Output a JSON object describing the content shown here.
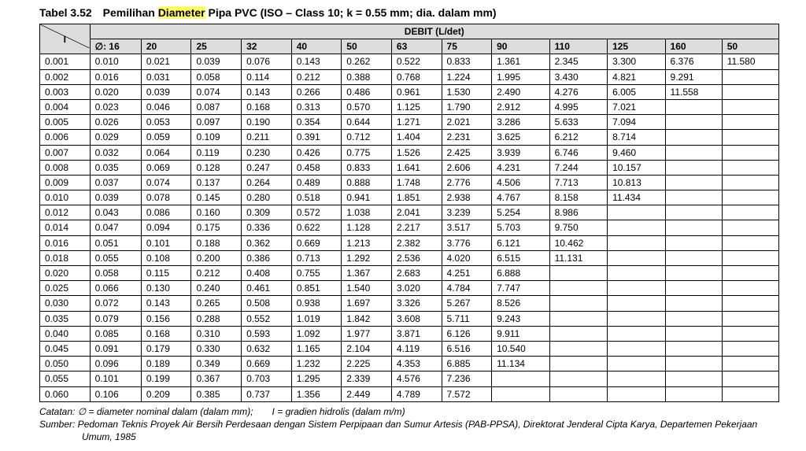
{
  "caption_prefix": "Tabel 3.52 Pemilihan ",
  "caption_highlight": "Diameter",
  "caption_suffix": " Pipa PVC (ISO – Class 10; k = 0.55 mm; dia. dalam mm)",
  "i_label": "I",
  "debit_header": "DEBIT (L/det)",
  "diameter_symbol": "∅: ",
  "diameters": [
    "16",
    "20",
    "25",
    "32",
    "40",
    "50",
    "63",
    "75",
    "90",
    "110",
    "125",
    "160",
    "50"
  ],
  "rows": [
    {
      "i": "0.001",
      "v": [
        "0.010",
        "0.021",
        "0.039",
        "0.076",
        "0.143",
        "0.262",
        "0.522",
        "0.833",
        "1.361",
        "2.345",
        "3.300",
        "6.376",
        "11.580"
      ]
    },
    {
      "i": "0.002",
      "v": [
        "0.016",
        "0.031",
        "0.058",
        "0.114",
        "0.212",
        "0.388",
        "0.768",
        "1.224",
        "1.995",
        "3.430",
        "4.821",
        "9.291",
        ""
      ]
    },
    {
      "i": "0.003",
      "v": [
        "0.020",
        "0.039",
        "0.074",
        "0.143",
        "0.266",
        "0.486",
        "0.961",
        "1.530",
        "2.490",
        "4.276",
        "6.005",
        "11.558",
        ""
      ]
    },
    {
      "i": "0.004",
      "v": [
        "0.023",
        "0.046",
        "0.087",
        "0.168",
        "0.313",
        "0.570",
        "1.125",
        "1.790",
        "2.912",
        "4.995",
        "7.021",
        "",
        ""
      ]
    },
    {
      "i": "0.005",
      "v": [
        "0.026",
        "0.053",
        "0.097",
        "0.190",
        "0.354",
        "0.644",
        "1.271",
        "2.021",
        "3.286",
        "5.633",
        "7.094",
        "",
        ""
      ]
    },
    {
      "i": "0.006",
      "v": [
        "0.029",
        "0.059",
        "0.109",
        "0.211",
        "0.391",
        "0.712",
        "1.404",
        "2.231",
        "3.625",
        "6.212",
        "8.714",
        "",
        ""
      ]
    },
    {
      "i": "0.007",
      "v": [
        "0.032",
        "0.064",
        "0.119",
        "0.230",
        "0.426",
        "0.775",
        "1.526",
        "2.425",
        "3.939",
        "6.746",
        "9.460",
        "",
        ""
      ]
    },
    {
      "i": "0.008",
      "v": [
        "0.035",
        "0.069",
        "0.128",
        "0.247",
        "0.458",
        "0.833",
        "1.641",
        "2.606",
        "4.231",
        "7.244",
        "10.157",
        "",
        ""
      ]
    },
    {
      "i": "0.009",
      "v": [
        "0.037",
        "0.074",
        "0.137",
        "0.264",
        "0.489",
        "0.888",
        "1.748",
        "2.776",
        "4.506",
        "7.713",
        "10.813",
        "",
        ""
      ]
    },
    {
      "i": "0.010",
      "v": [
        "0.039",
        "0.078",
        "0.145",
        "0.280",
        "0.518",
        "0.941",
        "1.851",
        "2.938",
        "4.767",
        "8.158",
        "11.434",
        "",
        ""
      ]
    },
    {
      "i": "0.012",
      "v": [
        "0.043",
        "0.086",
        "0.160",
        "0.309",
        "0.572",
        "1.038",
        "2.041",
        "3.239",
        "5.254",
        "8.986",
        "",
        "",
        ""
      ]
    },
    {
      "i": "0.014",
      "v": [
        "0.047",
        "0.094",
        "0.175",
        "0.336",
        "0.622",
        "1.128",
        "2.217",
        "3.517",
        "5.703",
        "9.750",
        "",
        "",
        ""
      ]
    },
    {
      "i": "0.016",
      "v": [
        "0.051",
        "0.101",
        "0.188",
        "0.362",
        "0.669",
        "1.213",
        "2.382",
        "3.776",
        "6.121",
        "10.462",
        "",
        "",
        ""
      ]
    },
    {
      "i": "0.018",
      "v": [
        "0.055",
        "0.108",
        "0.200",
        "0.386",
        "0.713",
        "1.292",
        "2.536",
        "4.020",
        "6.515",
        "11.131",
        "",
        "",
        ""
      ]
    },
    {
      "i": "0.020",
      "v": [
        "0.058",
        "0.115",
        "0.212",
        "0.408",
        "0.755",
        "1.367",
        "2.683",
        "4.251",
        "6.888",
        "",
        "",
        "",
        ""
      ]
    },
    {
      "i": "0.025",
      "v": [
        "0.066",
        "0.130",
        "0.240",
        "0.461",
        "0.851",
        "1.540",
        "3.020",
        "4.784",
        "7.747",
        "",
        "",
        "",
        ""
      ]
    },
    {
      "i": "0.030",
      "v": [
        "0.072",
        "0.143",
        "0.265",
        "0.508",
        "0.938",
        "1.697",
        "3.326",
        "5.267",
        "8.526",
        "",
        "",
        "",
        ""
      ]
    },
    {
      "i": "0.035",
      "v": [
        "0.079",
        "0.156",
        "0.288",
        "0.552",
        "1.019",
        "1.842",
        "3.608",
        "5.711",
        "9.243",
        "",
        "",
        "",
        ""
      ]
    },
    {
      "i": "0.040",
      "v": [
        "0.085",
        "0.168",
        "0.310",
        "0.593",
        "1.092",
        "1.977",
        "3.871",
        "6.126",
        "9.911",
        "",
        "",
        "",
        ""
      ]
    },
    {
      "i": "0.045",
      "v": [
        "0.091",
        "0.179",
        "0.330",
        "0.632",
        "1.165",
        "2.104",
        "4.119",
        "6.516",
        "10.540",
        "",
        "",
        "",
        ""
      ]
    },
    {
      "i": "0.050",
      "v": [
        "0.096",
        "0.189",
        "0.349",
        "0.669",
        "1.232",
        "2.225",
        "4.353",
        "6.885",
        "11.134",
        "",
        "",
        "",
        ""
      ]
    },
    {
      "i": "0.055",
      "v": [
        "0.101",
        "0.199",
        "0.367",
        "0.703",
        "1.295",
        "2.339",
        "4.576",
        "7.236",
        "",
        "",
        "",
        "",
        ""
      ]
    },
    {
      "i": "0.060",
      "v": [
        "0.106",
        "0.209",
        "0.385",
        "0.737",
        "1.356",
        "2.449",
        "4.789",
        "7.572",
        "",
        "",
        "",
        "",
        ""
      ]
    }
  ],
  "note_catatan": "Catatan: ∅ = diameter nominal dalam (dalam mm);  I = gradien hidrolis (dalam m/m)",
  "note_source_1": "Sumber: Pedoman Teknis Proyek Air Bersih Perdesaan dengan Sistem Perpipaan dan Sumur Artesis (PAB-PPSA), Direktorat Jenderal Cipta Karya, Departemen Pekerjaan",
  "note_source_2": "Umum, 1985"
}
